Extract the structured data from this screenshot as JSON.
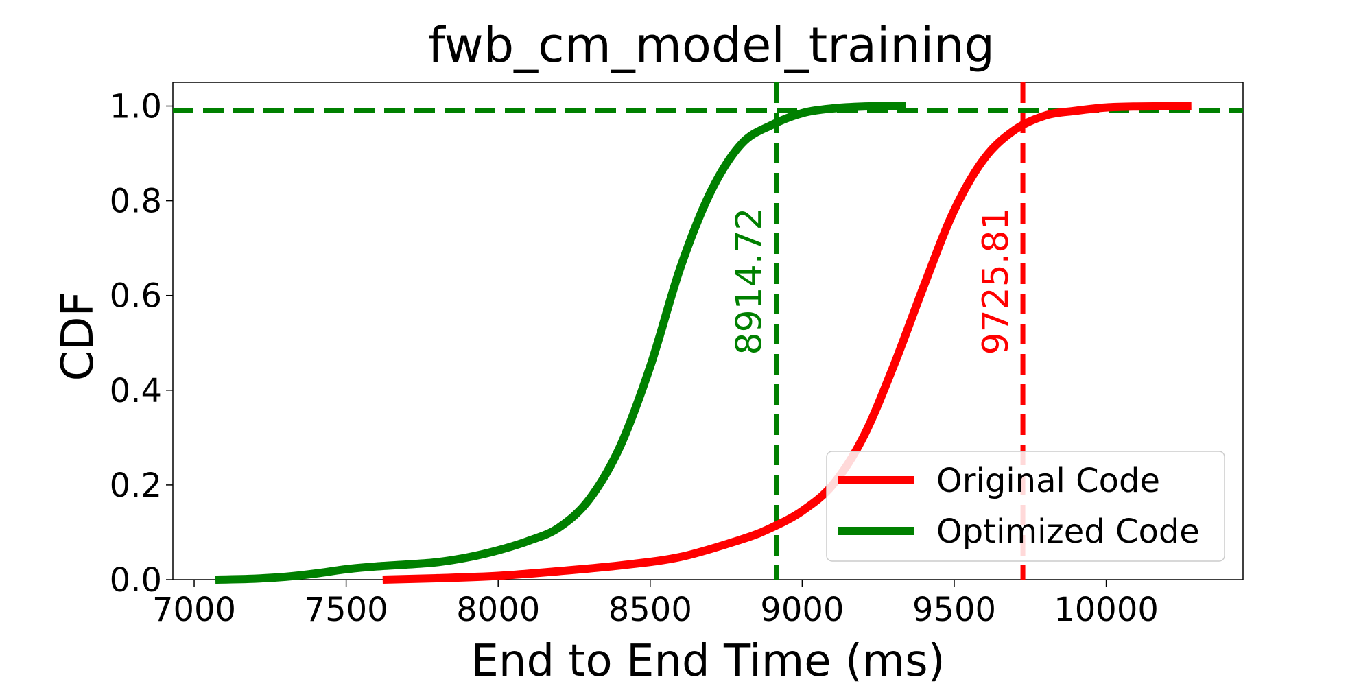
{
  "chart_data": {
    "type": "line",
    "title": "fwb_cm_model_training",
    "xlabel": "End to End Time (ms)",
    "ylabel": "CDF",
    "xlim": [
      6930,
      10450
    ],
    "ylim": [
      0.0,
      1.05
    ],
    "xticks": [
      7000,
      7500,
      8000,
      8500,
      9000,
      9500,
      10000
    ],
    "xtick_labels": [
      "7000",
      "7500",
      "8000",
      "8500",
      "9000",
      "9500",
      "10000"
    ],
    "yticks": [
      0.0,
      0.2,
      0.4,
      0.6,
      0.8,
      1.0
    ],
    "ytick_labels": [
      "0.0",
      "0.2",
      "0.4",
      "0.6",
      "0.8",
      "1.0"
    ],
    "grid": false,
    "legend_position": "lower-right",
    "series": [
      {
        "name": "Original Code",
        "color": "#ff0000",
        "x": [
          7620,
          7800,
          8000,
          8200,
          8400,
          8600,
          8800,
          8900,
          9000,
          9100,
          9200,
          9300,
          9400,
          9500,
          9600,
          9700,
          9800,
          9900,
          10000,
          10100,
          10280
        ],
        "y": [
          0.0,
          0.003,
          0.008,
          0.018,
          0.03,
          0.048,
          0.085,
          0.11,
          0.145,
          0.2,
          0.3,
          0.45,
          0.62,
          0.78,
          0.89,
          0.95,
          0.98,
          0.99,
          0.997,
          0.999,
          1.0
        ]
      },
      {
        "name": "Optimized Code",
        "color": "#008000",
        "x": [
          7070,
          7200,
          7300,
          7400,
          7500,
          7600,
          7700,
          7800,
          7900,
          8000,
          8100,
          8200,
          8300,
          8400,
          8500,
          8600,
          8700,
          8800,
          8900,
          9000,
          9100,
          9200,
          9340
        ],
        "y": [
          0.0,
          0.002,
          0.006,
          0.013,
          0.022,
          0.028,
          0.032,
          0.037,
          0.047,
          0.062,
          0.082,
          0.11,
          0.17,
          0.28,
          0.45,
          0.66,
          0.82,
          0.92,
          0.96,
          0.985,
          0.995,
          0.999,
          1.0
        ]
      }
    ],
    "reference_lines": [
      {
        "orientation": "horizontal",
        "value": 0.99,
        "color": "#008000",
        "style": "dashed"
      },
      {
        "orientation": "vertical",
        "value": 8914.72,
        "label": "8914.72",
        "color": "#008000",
        "style": "dashed"
      },
      {
        "orientation": "vertical",
        "value": 9725.81,
        "label": "9725.81",
        "color": "#ff0000",
        "style": "dashed"
      }
    ]
  }
}
